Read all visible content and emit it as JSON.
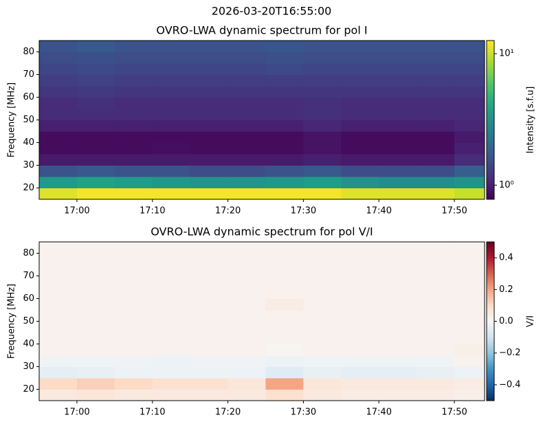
{
  "title": "2026-03-20T16:55:00",
  "chart_data": [
    {
      "type": "heatmap",
      "title": "OVRO-LWA dynamic spectrum for pol I",
      "ylabel": "Frequency [MHz]",
      "x": [
        "16:55",
        "17:00",
        "17:05",
        "17:10",
        "17:15",
        "17:20",
        "17:25",
        "17:30",
        "17:35",
        "17:40",
        "17:45",
        "17:50",
        "17:54"
      ],
      "y": [
        15,
        20,
        25,
        30,
        35,
        40,
        45,
        50,
        55,
        60,
        65,
        70,
        75,
        80,
        85
      ],
      "z": [
        [
          11,
          12,
          12,
          12,
          12,
          12,
          12,
          12,
          11,
          11,
          11,
          10
        ],
        [
          3.5,
          3.8,
          3.6,
          3.4,
          3.3,
          3.3,
          3.4,
          3.6,
          3.2,
          3.0,
          3.0,
          3.2
        ],
        [
          1.6,
          1.7,
          1.6,
          1.6,
          1.5,
          1.5,
          1.6,
          1.7,
          1.5,
          1.5,
          1.5,
          1.8
        ],
        [
          0.95,
          0.95,
          0.95,
          0.95,
          0.95,
          0.95,
          0.95,
          1.0,
          0.95,
          0.95,
          0.95,
          1.1
        ],
        [
          0.85,
          0.85,
          0.85,
          0.87,
          0.85,
          0.85,
          0.85,
          0.9,
          0.85,
          0.85,
          0.85,
          1.0
        ],
        [
          0.85,
          0.85,
          0.85,
          0.85,
          0.85,
          0.85,
          0.85,
          0.9,
          0.85,
          0.85,
          0.85,
          0.95
        ],
        [
          1.0,
          1.0,
          1.0,
          1.0,
          1.0,
          1.0,
          1.0,
          1.05,
          1.0,
          1.0,
          1.0,
          1.05
        ],
        [
          1.1,
          1.1,
          1.1,
          1.1,
          1.1,
          1.1,
          1.1,
          1.15,
          1.1,
          1.1,
          1.1,
          1.1
        ],
        [
          1.1,
          1.15,
          1.1,
          1.1,
          1.1,
          1.1,
          1.1,
          1.15,
          1.1,
          1.1,
          1.1,
          1.1
        ],
        [
          1.2,
          1.25,
          1.2,
          1.2,
          1.2,
          1.2,
          1.2,
          1.2,
          1.2,
          1.2,
          1.2,
          1.2
        ],
        [
          1.3,
          1.35,
          1.3,
          1.3,
          1.3,
          1.3,
          1.3,
          1.3,
          1.3,
          1.3,
          1.3,
          1.3
        ],
        [
          1.4,
          1.45,
          1.4,
          1.4,
          1.4,
          1.4,
          1.45,
          1.4,
          1.4,
          1.4,
          1.4,
          1.4
        ],
        [
          1.5,
          1.55,
          1.5,
          1.5,
          1.5,
          1.5,
          1.55,
          1.5,
          1.5,
          1.5,
          1.5,
          1.5
        ],
        [
          1.6,
          1.7,
          1.6,
          1.6,
          1.6,
          1.6,
          1.65,
          1.6,
          1.6,
          1.6,
          1.6,
          1.6
        ]
      ],
      "xlim": [
        "16:55",
        "17:54"
      ],
      "xticks": [
        "17:00",
        "17:10",
        "17:20",
        "17:30",
        "17:40",
        "17:50"
      ],
      "ylim": [
        15,
        85
      ],
      "yticks": [
        20,
        30,
        40,
        50,
        60,
        70,
        80
      ],
      "colormap": "viridis",
      "zscale": "log",
      "zlim": [
        0.78,
        12.6
      ],
      "zticks": [
        {
          "value": 1,
          "label": "10⁰"
        },
        {
          "value": 10,
          "label": "10¹"
        }
      ],
      "zlabel": "Intensity [s.f.u]"
    },
    {
      "type": "heatmap",
      "title": "OVRO-LWA dynamic spectrum for pol V/I",
      "ylabel": "Frequency [MHz]",
      "x": [
        "16:55",
        "17:00",
        "17:05",
        "17:10",
        "17:15",
        "17:20",
        "17:25",
        "17:30",
        "17:35",
        "17:40",
        "17:45",
        "17:50",
        "17:54"
      ],
      "y": [
        15,
        20,
        25,
        30,
        35,
        40,
        45,
        50,
        55,
        60,
        65,
        70,
        75,
        80,
        85
      ],
      "z": [
        [
          0.05,
          0.06,
          0.05,
          0.05,
          0.05,
          0.05,
          0.08,
          0.05,
          0.04,
          0.04,
          0.04,
          0.03
        ],
        [
          0.1,
          0.12,
          0.1,
          0.08,
          0.08,
          0.06,
          0.2,
          0.06,
          0.05,
          0.05,
          0.05,
          0.04
        ],
        [
          -0.05,
          -0.04,
          -0.03,
          -0.03,
          -0.03,
          -0.03,
          -0.06,
          -0.04,
          -0.05,
          -0.05,
          -0.04,
          -0.03
        ],
        [
          -0.02,
          -0.02,
          -0.02,
          -0.03,
          -0.02,
          -0.02,
          -0.03,
          -0.02,
          -0.02,
          -0.02,
          -0.02,
          0.02
        ],
        [
          0.02,
          0.02,
          0.02,
          0.02,
          0.02,
          0.02,
          0.01,
          0.02,
          0.02,
          0.02,
          0.02,
          0.03
        ],
        [
          0.02,
          0.02,
          0.02,
          0.02,
          0.02,
          0.02,
          0.02,
          0.02,
          0.02,
          0.02,
          0.02,
          0.02
        ],
        [
          0.02,
          0.02,
          0.02,
          0.02,
          0.02,
          0.02,
          0.02,
          0.02,
          0.02,
          0.02,
          0.02,
          0.02
        ],
        [
          0.02,
          0.02,
          0.02,
          0.02,
          0.02,
          0.02,
          0.02,
          0.02,
          0.02,
          0.02,
          0.02,
          0.02
        ],
        [
          0.02,
          0.02,
          0.02,
          0.02,
          0.02,
          0.02,
          0.04,
          0.02,
          0.02,
          0.02,
          0.02,
          0.02
        ],
        [
          0.02,
          0.02,
          0.02,
          0.02,
          0.02,
          0.02,
          0.02,
          0.02,
          0.02,
          0.02,
          0.02,
          0.02
        ],
        [
          0.02,
          0.02,
          0.02,
          0.02,
          0.02,
          0.02,
          0.02,
          0.02,
          0.02,
          0.02,
          0.02,
          0.02
        ],
        [
          0.02,
          0.02,
          0.02,
          0.02,
          0.02,
          0.02,
          0.02,
          0.02,
          0.02,
          0.02,
          0.02,
          0.02
        ],
        [
          0.02,
          0.02,
          0.02,
          0.02,
          0.02,
          0.02,
          0.02,
          0.02,
          0.02,
          0.02,
          0.02,
          0.02
        ],
        [
          0.02,
          0.02,
          0.02,
          0.02,
          0.02,
          0.02,
          0.02,
          0.02,
          0.02,
          0.02,
          0.02,
          0.02
        ]
      ],
      "xlim": [
        "16:55",
        "17:54"
      ],
      "xticks": [
        "17:00",
        "17:10",
        "17:20",
        "17:30",
        "17:40",
        "17:50"
      ],
      "ylim": [
        15,
        85
      ],
      "yticks": [
        20,
        30,
        40,
        50,
        60,
        70,
        80
      ],
      "colormap": "RdBu_r",
      "zscale": "linear",
      "zlim": [
        -0.5,
        0.5
      ],
      "zticks": [
        {
          "value": -0.4,
          "label": "−0.4"
        },
        {
          "value": -0.2,
          "label": "−0.2"
        },
        {
          "value": 0,
          "label": "0.0"
        },
        0.2,
        0.4
      ],
      "zlabel": "V/I"
    }
  ]
}
